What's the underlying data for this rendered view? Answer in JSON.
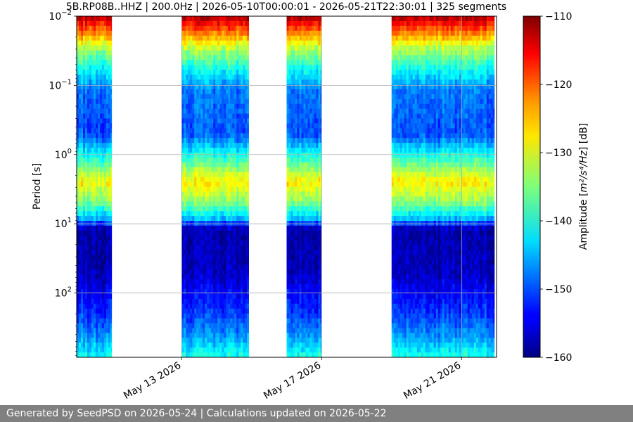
{
  "chart_data": {
    "type": "heatmap",
    "title": "5B.RP08B..HHZ | 200.0Hz | 2026-05-10T00:00:01 - 2026-05-21T22:30:01 | 325 segments",
    "xlabel": "",
    "ylabel": "Period [s]",
    "x_scale": "date",
    "xlim": [
      "2026-05-10T00:00:01",
      "2026-05-22T00:00:00"
    ],
    "x_ticks": [
      {
        "date": "2026-05-13",
        "label": "May 13 2026"
      },
      {
        "date": "2026-05-17",
        "label": "May 17 2026"
      },
      {
        "date": "2026-05-21",
        "label": "May 21 2026"
      }
    ],
    "y_scale": "log",
    "y_inverted": true,
    "ylim": [
      0.01,
      850
    ],
    "y_ticks": [
      {
        "value": 0.01,
        "base": "10",
        "exp": "−2"
      },
      {
        "value": 0.1,
        "base": "10",
        "exp": "−1"
      },
      {
        "value": 1,
        "base": "10",
        "exp": "0"
      },
      {
        "value": 10,
        "base": "10",
        "exp": "1"
      },
      {
        "value": 100,
        "base": "10",
        "exp": "2"
      }
    ],
    "grid": true,
    "colormap": "jet",
    "colorbar": {
      "label_prefix": "Amplitude [",
      "label_unit": "m²/s⁴/Hz",
      "label_suffix": "] [dB]",
      "range": [
        -160,
        -110
      ],
      "ticks": [
        -110,
        -120,
        -130,
        -140,
        -150,
        -160
      ],
      "tick_labels": [
        "−110",
        "−120",
        "−130",
        "−140",
        "−150",
        "−160"
      ]
    },
    "data_segments": [
      {
        "start": "2026-05-10T00:00:01",
        "end": "2026-05-11T00:00:00"
      },
      {
        "start": "2026-05-13T00:00:00",
        "end": "2026-05-14T22:00:00"
      },
      {
        "start": "2026-05-16T00:00:00",
        "end": "2026-05-17T00:00:00"
      },
      {
        "start": "2026-05-19T00:00:00",
        "end": "2026-05-21T22:30:01"
      }
    ],
    "amplitude_profile_by_period": [
      {
        "period": 0.01,
        "db": -112
      },
      {
        "period": 0.02,
        "db": -125
      },
      {
        "period": 0.03,
        "db": -133
      },
      {
        "period": 0.06,
        "db": -141
      },
      {
        "period": 0.12,
        "db": -148
      },
      {
        "period": 0.5,
        "db": -150
      },
      {
        "period": 1.2,
        "db": -138
      },
      {
        "period": 2.5,
        "db": -128
      },
      {
        "period": 5,
        "db": -135
      },
      {
        "period": 8.5,
        "db": -145
      },
      {
        "period": 12,
        "db": -158
      },
      {
        "period": 50,
        "db": -157
      },
      {
        "period": 200,
        "db": -151
      },
      {
        "period": 450,
        "db": -146
      },
      {
        "period": 850,
        "db": -140
      }
    ]
  },
  "footer": {
    "text": "Generated by SeedPSD on 2026-05-24 | Calculations updated on 2026-05-22"
  }
}
